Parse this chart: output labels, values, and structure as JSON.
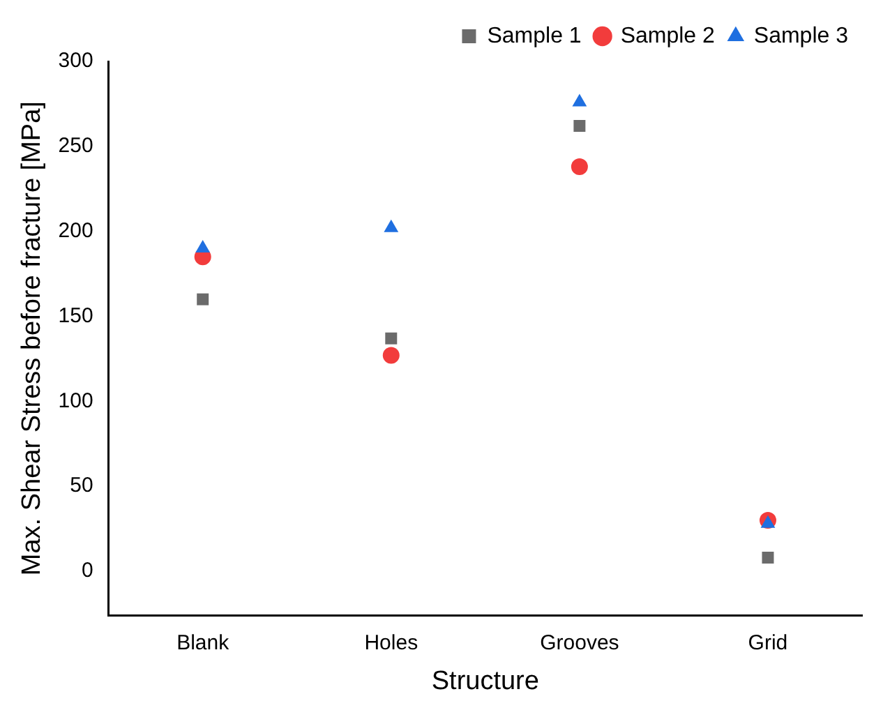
{
  "chart_data": {
    "type": "scatter",
    "xlabel": "Structure",
    "ylabel": "Max. Shear Stress before fracture [MPa]",
    "categories": [
      "Blank",
      "Holes",
      "Grooves",
      "Grid"
    ],
    "series": [
      {
        "name": "Sample 1",
        "color": "#6b6b6b",
        "marker": "square",
        "values": [
          160,
          137,
          262,
          8
        ]
      },
      {
        "name": "Sample 2",
        "color": "#f23c3c",
        "marker": "circle",
        "values": [
          185,
          127,
          238,
          30
        ]
      },
      {
        "name": "Sample 3",
        "color": "#1f6fe0",
        "marker": "triangle",
        "values": [
          190,
          202,
          276,
          28
        ]
      }
    ],
    "ylim": [
      -26,
      300
    ],
    "yticks": [
      0,
      50,
      100,
      150,
      200,
      250,
      300
    ],
    "grid": false,
    "legend": "top right"
  }
}
